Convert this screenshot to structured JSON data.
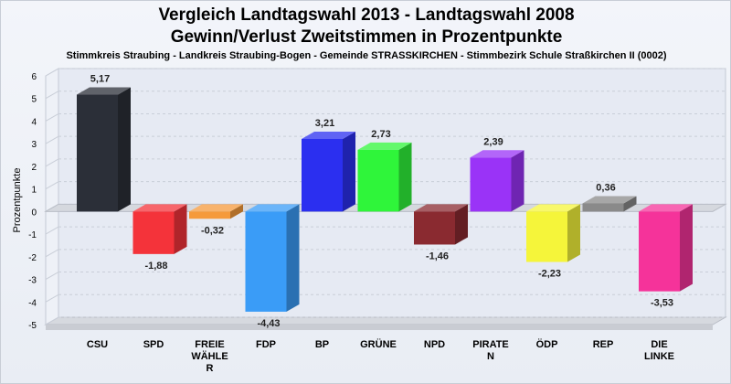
{
  "chart_data": {
    "type": "bar",
    "title": "Vergleich Landtagswahl 2013 - Landtagswahl 2008",
    "subtitle": "Gewinn/Verlust Zweitstimmen in Prozentpunkte",
    "description": "Stimmkreis Straubing - Landkreis Straubing-Bogen - Gemeinde STRASSKIRCHEN - Stimmbezirk Schule Straßkirchen II (0002)",
    "ylabel": "Prozentpunkte",
    "xlabel": "",
    "ylim": [
      -5,
      6
    ],
    "yticks": [
      6,
      5,
      4,
      3,
      2,
      1,
      0,
      -1,
      -2,
      -3,
      -4,
      -5
    ],
    "categories": [
      [
        "CSU"
      ],
      [
        "SPD"
      ],
      [
        "FREIE",
        "WÄHLE",
        "R"
      ],
      [
        "FDP"
      ],
      [
        "BP"
      ],
      [
        "GRÜNE"
      ],
      [
        "NPD"
      ],
      [
        "PIRATE",
        "N"
      ],
      [
        "ÖDP"
      ],
      [
        "REP"
      ],
      [
        "DIE",
        "LINKE"
      ]
    ],
    "values": [
      5.17,
      -1.88,
      -0.32,
      -4.43,
      3.21,
      2.73,
      -1.46,
      2.39,
      -2.23,
      0.36,
      -3.53
    ],
    "value_labels": [
      "5,17",
      "-1,88",
      "-0,32",
      "-4,43",
      "3,21",
      "2,73",
      "-1,46",
      "2,39",
      "-2,23",
      "0,36",
      "-3,53"
    ],
    "colors": [
      "#2b2f38",
      "#f4333a",
      "#f59a3b",
      "#3a9cf7",
      "#2b2ff0",
      "#2ff53a",
      "#8a2a30",
      "#9a33f7",
      "#f5f53a",
      "#8a8a8a",
      "#f5339a"
    ],
    "grid": true,
    "legend": "none"
  }
}
